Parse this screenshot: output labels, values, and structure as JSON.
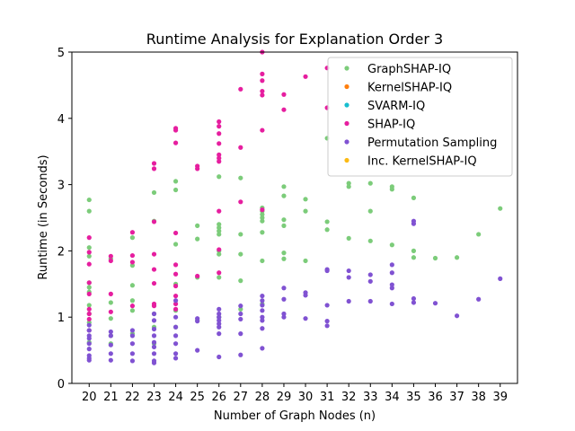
{
  "chart_data": {
    "type": "scatter",
    "title": "Runtime Analysis for Explanation Order 3",
    "xlabel": "Number of Graph Nodes (n)",
    "ylabel": "Runtime (in Seconds)",
    "x_ticks": [
      20,
      21,
      22,
      23,
      24,
      25,
      26,
      27,
      28,
      29,
      30,
      31,
      32,
      33,
      34,
      35,
      36,
      37,
      38,
      39
    ],
    "y_ticks": [
      0,
      1,
      2,
      3,
      4,
      5
    ],
    "xlim": [
      19.2,
      39.8
    ],
    "ylim": [
      0,
      5
    ],
    "grid": false,
    "legend_position": "top-right",
    "series": [
      {
        "name": "GraphSHAP-IQ",
        "color": "#7ccc7a",
        "points": [
          [
            20,
            2.77
          ],
          [
            20,
            2.6
          ],
          [
            20,
            2.05
          ],
          [
            20,
            1.92
          ],
          [
            20,
            1.52
          ],
          [
            20,
            1.45
          ],
          [
            20,
            1.38
          ],
          [
            20,
            1.18
          ],
          [
            20,
            1.05
          ],
          [
            20,
            0.92
          ],
          [
            20,
            0.62
          ],
          [
            21,
            1.88
          ],
          [
            21,
            1.22
          ],
          [
            21,
            0.98
          ],
          [
            21,
            0.72
          ],
          [
            21,
            0.6
          ],
          [
            22,
            2.2
          ],
          [
            22,
            1.78
          ],
          [
            22,
            1.48
          ],
          [
            22,
            1.25
          ],
          [
            22,
            1.1
          ],
          [
            22,
            0.75
          ],
          [
            23,
            2.88
          ],
          [
            23,
            2.45
          ],
          [
            23,
            1.05
          ],
          [
            23,
            0.85
          ],
          [
            23,
            0.6
          ],
          [
            24,
            3.05
          ],
          [
            24,
            2.92
          ],
          [
            24,
            2.1
          ],
          [
            24,
            1.5
          ],
          [
            24,
            1.1
          ],
          [
            24,
            0.85
          ],
          [
            25,
            2.38
          ],
          [
            25,
            2.18
          ],
          [
            25,
            1.6
          ],
          [
            25,
            0.95
          ],
          [
            26,
            3.12
          ],
          [
            26,
            2.4
          ],
          [
            26,
            2.35
          ],
          [
            26,
            2.3
          ],
          [
            26,
            2.25
          ],
          [
            26,
            2.0
          ],
          [
            26,
            1.95
          ],
          [
            26,
            1.6
          ],
          [
            26,
            1.0
          ],
          [
            27,
            3.1
          ],
          [
            27,
            2.25
          ],
          [
            27,
            1.95
          ],
          [
            27,
            1.55
          ],
          [
            27,
            1.12
          ],
          [
            28,
            2.65
          ],
          [
            28,
            2.6
          ],
          [
            28,
            2.55
          ],
          [
            28,
            2.5
          ],
          [
            28,
            2.45
          ],
          [
            28,
            2.28
          ],
          [
            28,
            1.85
          ],
          [
            28,
            1.2
          ],
          [
            29,
            2.97
          ],
          [
            29,
            2.83
          ],
          [
            29,
            2.47
          ],
          [
            29,
            2.38
          ],
          [
            29,
            1.97
          ],
          [
            29,
            1.88
          ],
          [
            30,
            2.78
          ],
          [
            30,
            2.6
          ],
          [
            30,
            1.85
          ],
          [
            31,
            3.7
          ],
          [
            31,
            2.44
          ],
          [
            31,
            2.32
          ],
          [
            32,
            3.02
          ],
          [
            32,
            2.97
          ],
          [
            32,
            2.19
          ],
          [
            33,
            3.02
          ],
          [
            33,
            2.6
          ],
          [
            33,
            2.15
          ],
          [
            34,
            2.97
          ],
          [
            34,
            2.93
          ],
          [
            34,
            2.09
          ],
          [
            35,
            2.8
          ],
          [
            35,
            2.0
          ],
          [
            35,
            1.9
          ],
          [
            36,
            1.89
          ],
          [
            37,
            1.9
          ],
          [
            38,
            2.25
          ],
          [
            39,
            2.64
          ]
        ]
      },
      {
        "name": "KernelSHAP-IQ",
        "color": "#ff7f0e",
        "points": []
      },
      {
        "name": "SVARM-IQ",
        "color": "#17becf",
        "points": []
      },
      {
        "name": "SHAP-IQ",
        "color": "#e61e9f",
        "points": [
          [
            20,
            2.2
          ],
          [
            20,
            1.98
          ],
          [
            20,
            1.8
          ],
          [
            20,
            1.52
          ],
          [
            20,
            1.35
          ],
          [
            20,
            1.12
          ],
          [
            20,
            1.05
          ],
          [
            20,
            0.97
          ],
          [
            20,
            0.8
          ],
          [
            21,
            1.92
          ],
          [
            21,
            1.85
          ],
          [
            21,
            1.35
          ],
          [
            21,
            1.08
          ],
          [
            22,
            2.28
          ],
          [
            22,
            1.93
          ],
          [
            22,
            1.83
          ],
          [
            22,
            1.17
          ],
          [
            23,
            3.32
          ],
          [
            23,
            3.24
          ],
          [
            23,
            2.44
          ],
          [
            23,
            1.95
          ],
          [
            23,
            1.72
          ],
          [
            23,
            1.51
          ],
          [
            23,
            1.2
          ],
          [
            23,
            1.17
          ],
          [
            24,
            3.85
          ],
          [
            24,
            3.82
          ],
          [
            24,
            3.63
          ],
          [
            24,
            2.27
          ],
          [
            24,
            1.79
          ],
          [
            24,
            1.65
          ],
          [
            24,
            1.47
          ],
          [
            24,
            1.32
          ],
          [
            24,
            1.2
          ],
          [
            24,
            1.12
          ],
          [
            25,
            3.28
          ],
          [
            25,
            3.24
          ],
          [
            25,
            1.62
          ],
          [
            26,
            3.95
          ],
          [
            26,
            3.88
          ],
          [
            26,
            3.77
          ],
          [
            26,
            3.62
          ],
          [
            26,
            3.45
          ],
          [
            26,
            3.4
          ],
          [
            26,
            3.35
          ],
          [
            26,
            2.6
          ],
          [
            26,
            2.02
          ],
          [
            26,
            1.67
          ],
          [
            27,
            4.44
          ],
          [
            27,
            3.56
          ],
          [
            27,
            2.74
          ],
          [
            28,
            5.0
          ],
          [
            28,
            4.67
          ],
          [
            28,
            4.57
          ],
          [
            28,
            4.41
          ],
          [
            28,
            4.35
          ],
          [
            28,
            3.82
          ],
          [
            28,
            2.62
          ],
          [
            29,
            4.36
          ],
          [
            29,
            4.13
          ],
          [
            30,
            4.63
          ],
          [
            31,
            4.76
          ],
          [
            31,
            4.16
          ]
        ]
      },
      {
        "name": "Permutation Sampling",
        "color": "#8052d2",
        "points": [
          [
            20,
            0.88
          ],
          [
            20,
            0.8
          ],
          [
            20,
            0.72
          ],
          [
            20,
            0.68
          ],
          [
            20,
            0.6
          ],
          [
            20,
            0.52
          ],
          [
            20,
            0.42
          ],
          [
            20,
            0.38
          ],
          [
            20,
            0.35
          ],
          [
            21,
            0.78
          ],
          [
            21,
            0.72
          ],
          [
            21,
            0.58
          ],
          [
            21,
            0.45
          ],
          [
            21,
            0.35
          ],
          [
            22,
            0.8
          ],
          [
            22,
            0.72
          ],
          [
            22,
            0.6
          ],
          [
            22,
            0.45
          ],
          [
            22,
            0.34
          ],
          [
            23,
            1.05
          ],
          [
            23,
            0.95
          ],
          [
            23,
            0.82
          ],
          [
            23,
            0.72
          ],
          [
            23,
            0.62
          ],
          [
            23,
            0.55
          ],
          [
            23,
            0.45
          ],
          [
            23,
            0.34
          ],
          [
            23,
            0.31
          ],
          [
            24,
            1.25
          ],
          [
            24,
            1.0
          ],
          [
            24,
            0.85
          ],
          [
            24,
            0.72
          ],
          [
            24,
            0.6
          ],
          [
            24,
            0.45
          ],
          [
            24,
            0.38
          ],
          [
            25,
            0.98
          ],
          [
            25,
            0.94
          ],
          [
            25,
            0.5
          ],
          [
            26,
            1.12
          ],
          [
            26,
            1.05
          ],
          [
            26,
            1.0
          ],
          [
            26,
            0.95
          ],
          [
            26,
            0.9
          ],
          [
            26,
            0.85
          ],
          [
            26,
            0.75
          ],
          [
            26,
            0.4
          ],
          [
            27,
            1.17
          ],
          [
            27,
            1.05
          ],
          [
            27,
            0.97
          ],
          [
            27,
            0.75
          ],
          [
            27,
            0.43
          ],
          [
            28,
            1.32
          ],
          [
            28,
            1.25
          ],
          [
            28,
            1.18
          ],
          [
            28,
            1.1
          ],
          [
            28,
            1.0
          ],
          [
            28,
            0.95
          ],
          [
            28,
            0.83
          ],
          [
            28,
            0.53
          ],
          [
            29,
            1.44
          ],
          [
            29,
            1.27
          ],
          [
            29,
            1.05
          ],
          [
            29,
            1.0
          ],
          [
            30,
            1.37
          ],
          [
            30,
            1.33
          ],
          [
            30,
            0.98
          ],
          [
            31,
            1.72
          ],
          [
            31,
            1.7
          ],
          [
            31,
            1.18
          ],
          [
            31,
            0.94
          ],
          [
            31,
            0.87
          ],
          [
            32,
            1.7
          ],
          [
            32,
            1.6
          ],
          [
            32,
            1.24
          ],
          [
            33,
            1.64
          ],
          [
            33,
            1.54
          ],
          [
            33,
            1.24
          ],
          [
            34,
            1.79
          ],
          [
            34,
            1.67
          ],
          [
            34,
            1.49
          ],
          [
            34,
            1.44
          ],
          [
            34,
            1.2
          ],
          [
            35,
            2.45
          ],
          [
            35,
            2.41
          ],
          [
            35,
            1.28
          ],
          [
            35,
            1.22
          ],
          [
            36,
            1.21
          ],
          [
            37,
            1.02
          ],
          [
            38,
            1.27
          ],
          [
            39,
            1.58
          ]
        ]
      },
      {
        "name": "Inc. KernelSHAP-IQ",
        "color": "#fcba14",
        "points": []
      }
    ]
  }
}
